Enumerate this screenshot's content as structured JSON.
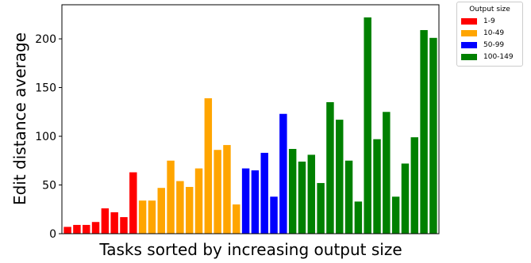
{
  "chart_data": {
    "type": "bar",
    "xlabel": "Tasks sorted by increasing output size",
    "ylabel": "Edit distance average",
    "ylim": [
      0,
      235
    ],
    "yticks": [
      0,
      50,
      100,
      150,
      200
    ],
    "grid": false,
    "legend": {
      "title": "Output size",
      "placement": "outside top-right",
      "entries": [
        {
          "label": "1-9",
          "color": "#ff0000"
        },
        {
          "label": "10-49",
          "color": "#ffa500"
        },
        {
          "label": "50-99",
          "color": "#0000ff"
        },
        {
          "label": "100-149",
          "color": "#008000"
        }
      ]
    },
    "series": [
      {
        "name": "1-9",
        "color": "#ff0000",
        "values": [
          7,
          9,
          9,
          12,
          26,
          22,
          17,
          63
        ]
      },
      {
        "name": "10-49",
        "color": "#ffa500",
        "values": [
          34,
          34,
          47,
          75,
          54,
          48,
          67,
          139,
          86,
          91,
          30
        ]
      },
      {
        "name": "50-99",
        "color": "#0000ff",
        "values": [
          67,
          65,
          83,
          38,
          123
        ]
      },
      {
        "name": "100-149",
        "color": "#008000",
        "values": [
          87,
          74,
          81,
          52,
          135,
          117,
          75,
          33,
          222,
          97,
          125,
          38,
          72,
          99,
          209,
          201
        ]
      }
    ]
  }
}
